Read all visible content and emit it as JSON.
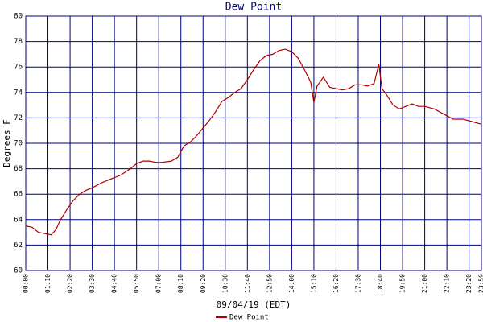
{
  "chart_data": {
    "type": "line",
    "title": "Dew Point",
    "ylabel": "Degrees F",
    "xlabel": "09/04/19 (EDT)",
    "xlim": [
      0,
      1439
    ],
    "ylim": [
      60,
      80
    ],
    "yticks": [
      60,
      62,
      64,
      66,
      68,
      70,
      72,
      74,
      76,
      78,
      80
    ],
    "xticks": [
      {
        "value": 0,
        "label": "00:00"
      },
      {
        "value": 70,
        "label": "01:10"
      },
      {
        "value": 140,
        "label": "02:20"
      },
      {
        "value": 210,
        "label": "03:30"
      },
      {
        "value": 280,
        "label": "04:40"
      },
      {
        "value": 350,
        "label": "05:50"
      },
      {
        "value": 420,
        "label": "07:00"
      },
      {
        "value": 490,
        "label": "08:10"
      },
      {
        "value": 560,
        "label": "09:20"
      },
      {
        "value": 630,
        "label": "10:30"
      },
      {
        "value": 700,
        "label": "11:40"
      },
      {
        "value": 770,
        "label": "12:50"
      },
      {
        "value": 840,
        "label": "14:00"
      },
      {
        "value": 910,
        "label": "15:10"
      },
      {
        "value": 980,
        "label": "16:20"
      },
      {
        "value": 1050,
        "label": "17:30"
      },
      {
        "value": 1120,
        "label": "18:40"
      },
      {
        "value": 1190,
        "label": "19:50"
      },
      {
        "value": 1260,
        "label": "21:00"
      },
      {
        "value": 1330,
        "label": "22:10"
      },
      {
        "value": 1400,
        "label": "23:20"
      },
      {
        "value": 1439,
        "label": "23:59"
      }
    ],
    "grid": true,
    "x": [
      0,
      20,
      40,
      60,
      80,
      95,
      110,
      130,
      150,
      170,
      190,
      210,
      240,
      270,
      300,
      330,
      350,
      370,
      390,
      410,
      430,
      460,
      480,
      500,
      520,
      540,
      560,
      580,
      600,
      620,
      640,
      660,
      680,
      700,
      720,
      740,
      760,
      780,
      800,
      820,
      840,
      860,
      880,
      900,
      910,
      920,
      940,
      960,
      980,
      1000,
      1020,
      1040,
      1060,
      1080,
      1100,
      1115,
      1125,
      1140,
      1160,
      1180,
      1200,
      1220,
      1240,
      1260,
      1290,
      1320,
      1350,
      1380,
      1410,
      1439
    ],
    "series": [
      {
        "name": "Dew Point",
        "color": "#b00000",
        "values": [
          63.5,
          63.4,
          63.0,
          62.9,
          62.8,
          63.2,
          64.0,
          64.8,
          65.5,
          66.0,
          66.3,
          66.5,
          66.9,
          67.2,
          67.5,
          68.0,
          68.4,
          68.6,
          68.6,
          68.5,
          68.5,
          68.6,
          68.9,
          69.8,
          70.1,
          70.6,
          71.2,
          71.8,
          72.5,
          73.3,
          73.6,
          74.0,
          74.3,
          75.0,
          75.8,
          76.5,
          76.9,
          77.0,
          77.3,
          77.4,
          77.2,
          76.7,
          75.8,
          74.8,
          73.2,
          74.5,
          75.2,
          74.4,
          74.3,
          74.2,
          74.3,
          74.6,
          74.6,
          74.5,
          74.7,
          76.2,
          74.3,
          73.8,
          73.0,
          72.7,
          72.9,
          73.1,
          72.9,
          72.9,
          72.7,
          72.3,
          71.9,
          71.9,
          71.7,
          71.5
        ]
      }
    ]
  }
}
